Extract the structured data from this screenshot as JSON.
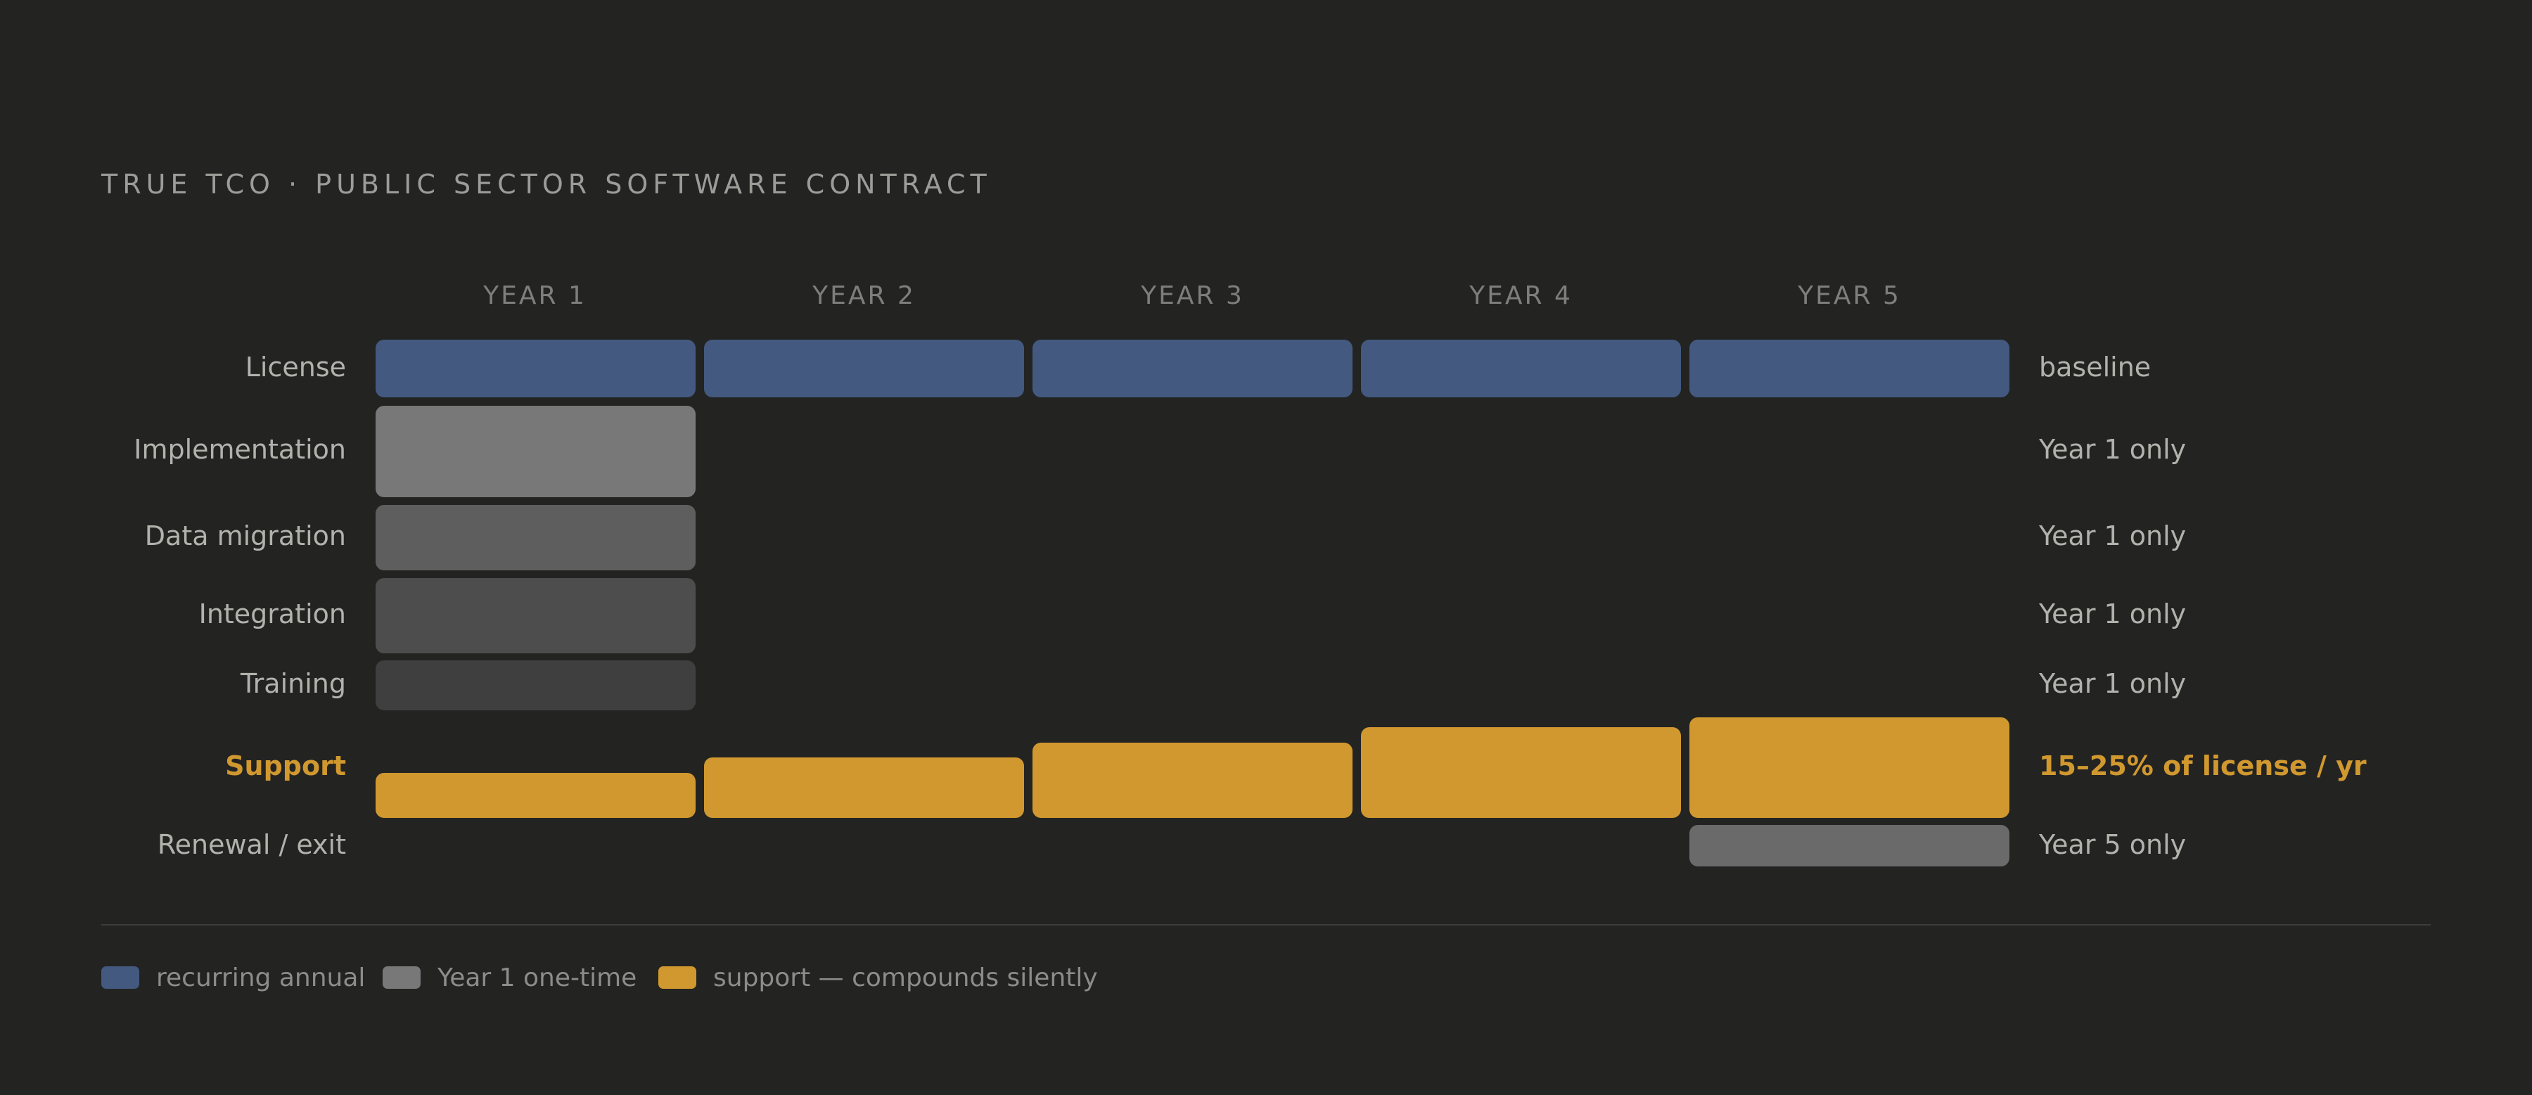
{
  "title": "TRUE TCO · PUBLIC SECTOR SOFTWARE CONTRACT",
  "years": [
    "YEAR 1",
    "YEAR 2",
    "YEAR 3",
    "YEAR 4",
    "YEAR 5"
  ],
  "rows": [
    {
      "label": "License",
      "note": "baseline",
      "highlight": false
    },
    {
      "label": "Implementation",
      "note": "Year 1 only",
      "highlight": false
    },
    {
      "label": "Data migration",
      "note": "Year 1 only",
      "highlight": false
    },
    {
      "label": "Integration",
      "note": "Year 1 only",
      "highlight": false
    },
    {
      "label": "Training",
      "note": "Year 1 only",
      "highlight": false
    },
    {
      "label": "Support",
      "note": "15–25% of license / yr",
      "highlight": true
    },
    {
      "label": "Renewal / exit",
      "note": "Year 5 only",
      "highlight": false
    }
  ],
  "legend": [
    {
      "label": "recurring annual",
      "color": "#43597f"
    },
    {
      "label": "Year 1 one-time",
      "color": "#787878"
    },
    {
      "label": "support — compounds silently",
      "color": "#d0982f"
    }
  ],
  "colors": {
    "recurring": "#43597f",
    "implementation": "#787878",
    "data_migration": "#5e5e5e",
    "integration": "#4d4d4d",
    "training": "#3f3f3f",
    "support": "#d0982f",
    "renewal": "#6a6a6a",
    "highlight_text": "#d0982f"
  },
  "chart_data": {
    "type": "bar",
    "categories": [
      "YEAR 1",
      "YEAR 2",
      "YEAR 3",
      "YEAR 4",
      "YEAR 5"
    ],
    "series": [
      {
        "name": "License",
        "values": [
          1,
          1,
          1,
          1,
          1
        ]
      },
      {
        "name": "Implementation",
        "values": [
          1,
          0,
          0,
          0,
          0
        ]
      },
      {
        "name": "Data migration",
        "values": [
          1,
          0,
          0,
          0,
          0
        ]
      },
      {
        "name": "Integration",
        "values": [
          1,
          0,
          0,
          0,
          0
        ]
      },
      {
        "name": "Training",
        "values": [
          1,
          0,
          0,
          0,
          0
        ]
      },
      {
        "name": "Support",
        "values": [
          0.45,
          0.6,
          0.75,
          0.9,
          1.0
        ]
      },
      {
        "name": "Renewal / exit",
        "values": [
          0,
          0,
          0,
          0,
          1
        ]
      }
    ]
  }
}
